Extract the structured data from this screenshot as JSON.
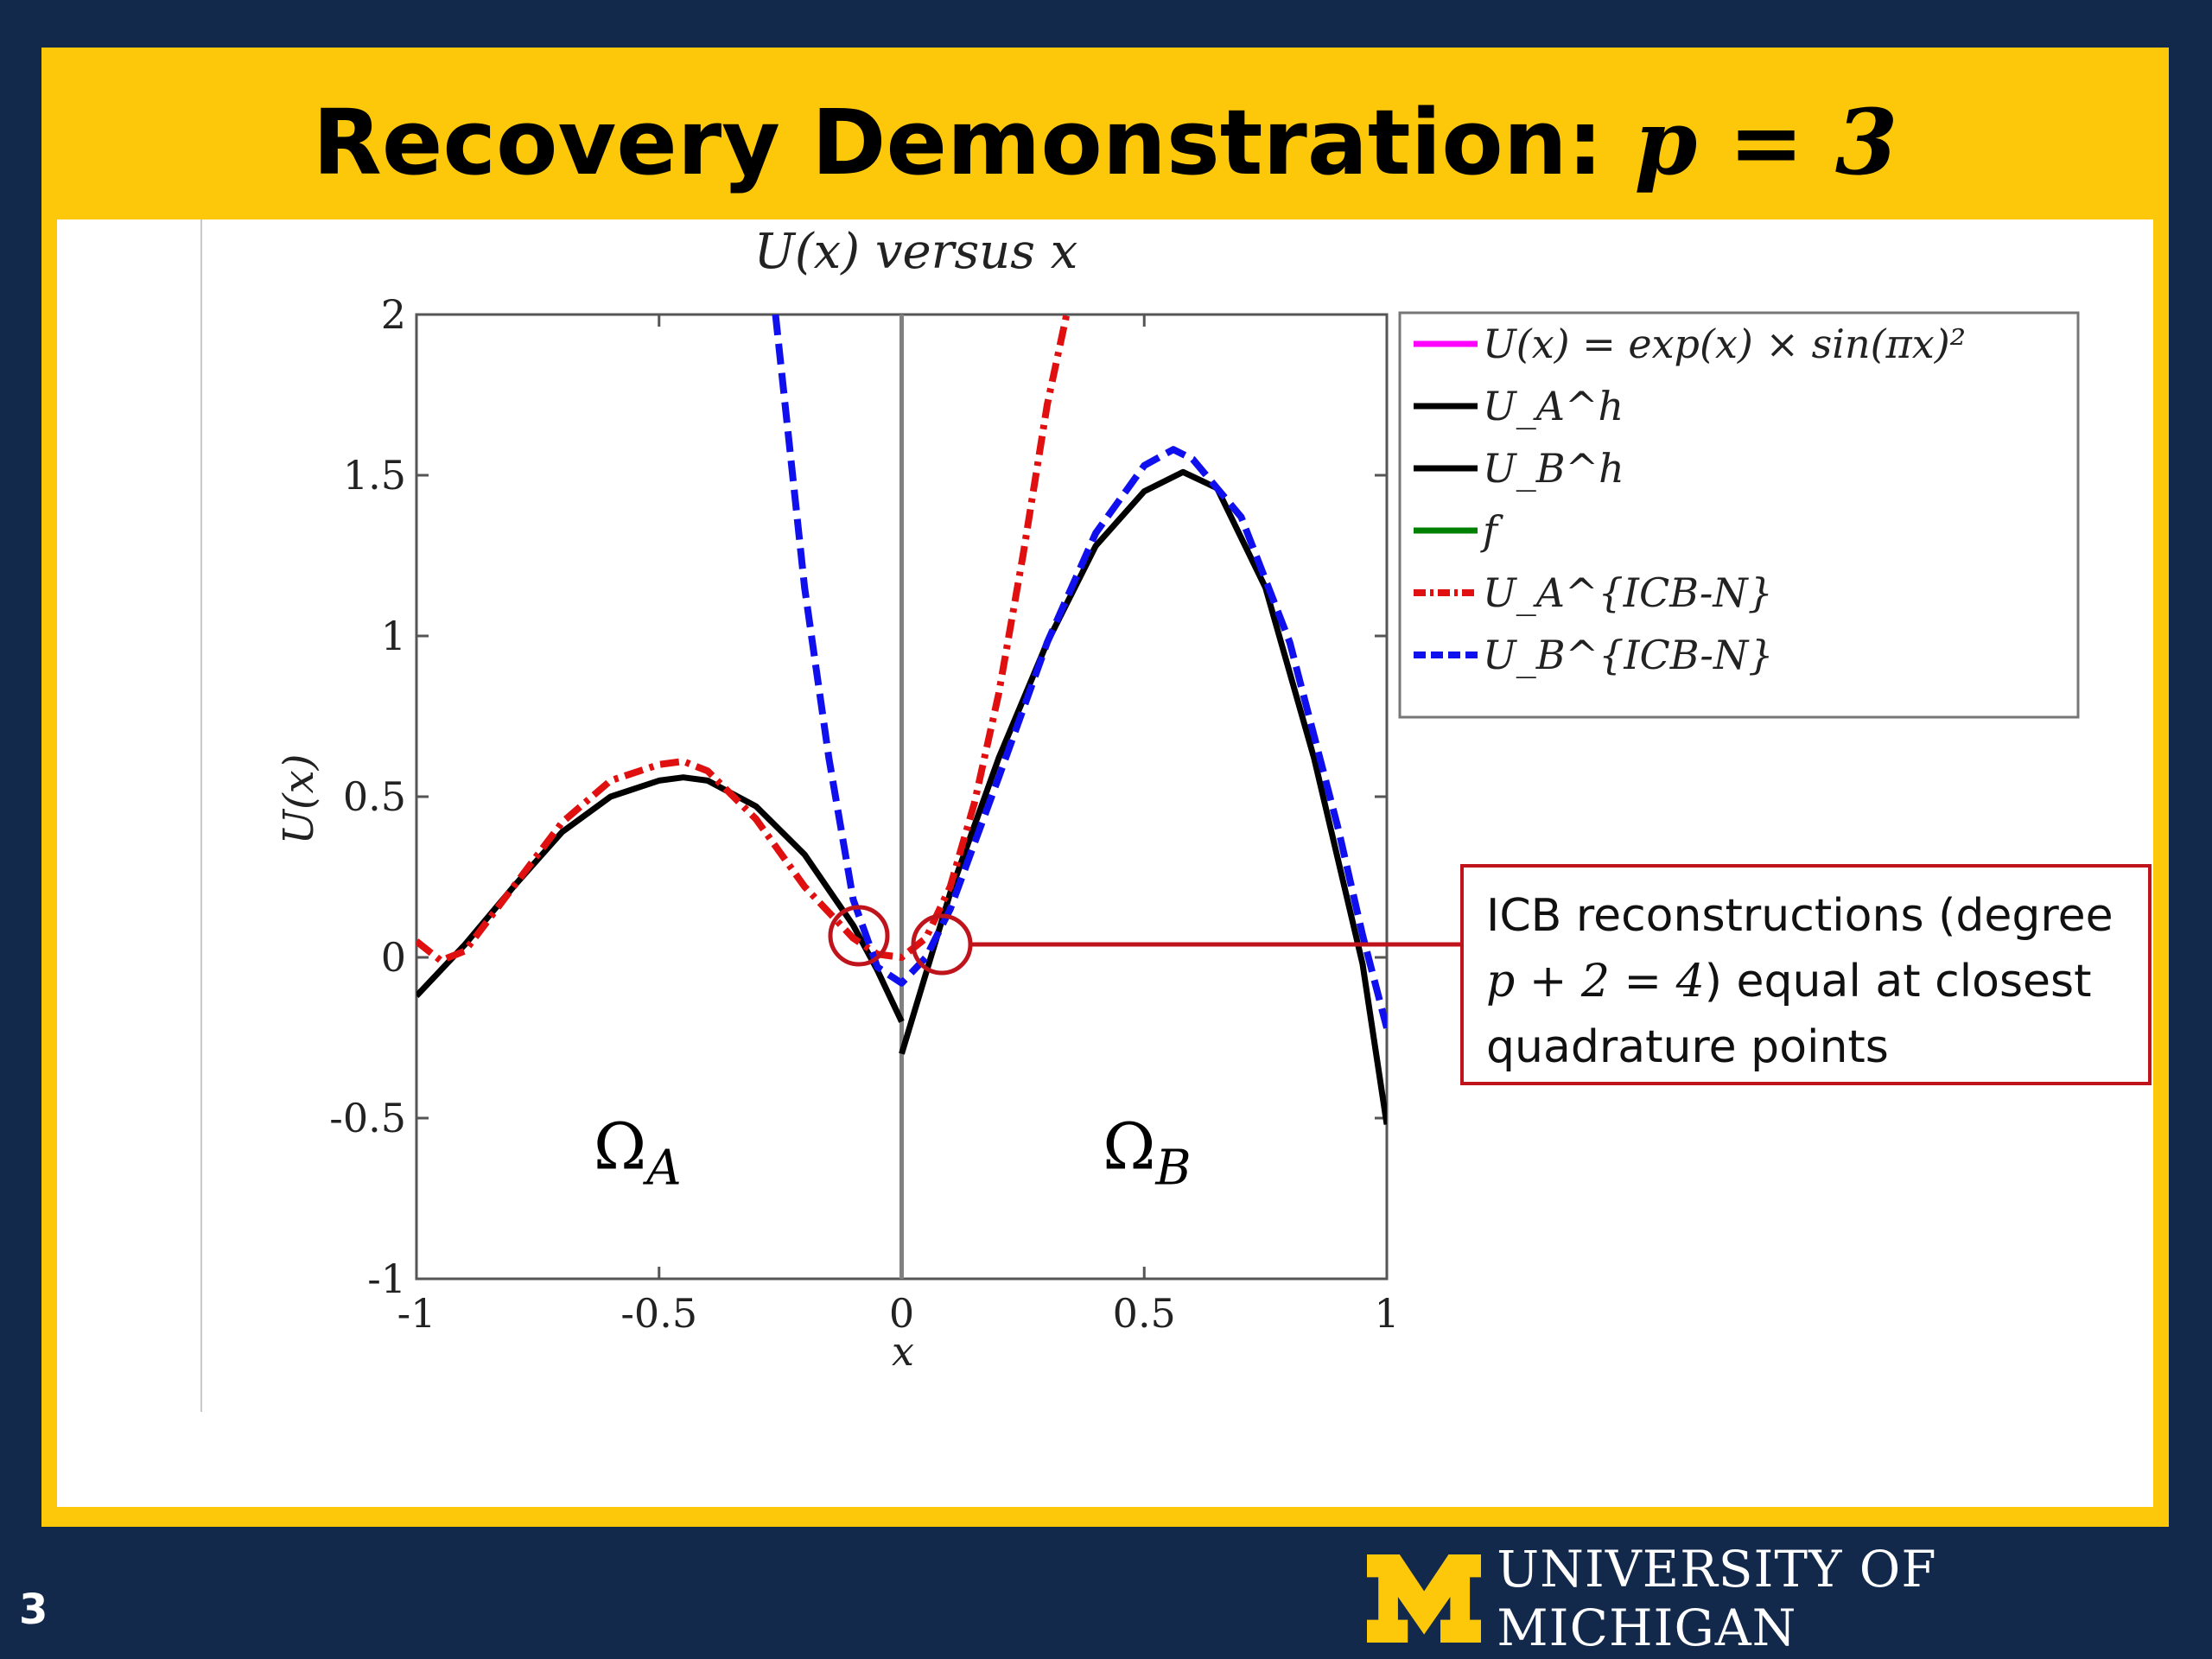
{
  "slide": {
    "title_text": "Recovery Demonstration: ",
    "title_math": "p = 3",
    "page_number": "3",
    "logo_text": "UNIVERSITY OF MICHIGAN",
    "colors": {
      "navy": "#12294b",
      "maize": "#fdc80a",
      "callout_border": "#c0141c"
    }
  },
  "callout": {
    "line1": "ICB reconstructions (degree",
    "line2_math": "p + 2 = 4",
    "line2_text": ") equal at closest",
    "line3": "quadrature points"
  },
  "chart_data": {
    "type": "line",
    "title": "U(x) versus x",
    "xlabel": "x",
    "ylabel": "U(x)",
    "xlim": [
      -1,
      1
    ],
    "ylim": [
      -1,
      2
    ],
    "xticks": [
      "-1",
      "-0.5",
      "0",
      "0.5",
      "1"
    ],
    "yticks": [
      "-1",
      "-0.5",
      "0",
      "0.5",
      "1",
      "1.5",
      "2"
    ],
    "legend_position": "top-right",
    "region_labels": [
      "Ω_A",
      "Ω_B"
    ],
    "series": [
      {
        "name": "U(x) = exp(x) × sin(πx)²",
        "color": "#ff00ff",
        "style": "solid",
        "x": [],
        "y": []
      },
      {
        "name": "U_A^h",
        "color": "#000000",
        "style": "solid",
        "x": [
          -1,
          -0.9,
          -0.8,
          -0.7,
          -0.6,
          -0.5,
          -0.45,
          -0.4,
          -0.3,
          -0.2,
          -0.1,
          -0.05,
          0
        ],
        "y": [
          -0.12,
          0.04,
          0.22,
          0.39,
          0.5,
          0.55,
          0.56,
          0.55,
          0.47,
          0.32,
          0.1,
          -0.04,
          -0.2
        ]
      },
      {
        "name": "U_B^h",
        "color": "#000000",
        "style": "solid",
        "x": [
          0,
          0.05,
          0.1,
          0.2,
          0.3,
          0.4,
          0.5,
          0.58,
          0.65,
          0.75,
          0.85,
          0.95,
          1
        ],
        "y": [
          -0.3,
          -0.05,
          0.2,
          0.62,
          0.98,
          1.28,
          1.45,
          1.51,
          1.46,
          1.15,
          0.62,
          -0.02,
          -0.52
        ]
      },
      {
        "name": "f",
        "color": "#008000",
        "style": "solid",
        "x": [],
        "y": []
      },
      {
        "name": "U_A^{ICB-N}",
        "color": "#e01010",
        "style": "dashdot",
        "x": [
          -1,
          -0.95,
          -0.9,
          -0.8,
          -0.7,
          -0.6,
          -0.5,
          -0.45,
          -0.4,
          -0.3,
          -0.2,
          -0.1,
          -0.05,
          0,
          0.05,
          0.1,
          0.15,
          0.2,
          0.25,
          0.3,
          0.34
        ],
        "y": [
          0.05,
          -0.01,
          0.02,
          0.22,
          0.42,
          0.55,
          0.6,
          0.61,
          0.58,
          0.43,
          0.22,
          0.06,
          0.01,
          0.0,
          0.06,
          0.22,
          0.48,
          0.82,
          1.25,
          1.72,
          2.0
        ]
      },
      {
        "name": "U_B^{ICB-N}",
        "color": "#1010ee",
        "style": "dashed",
        "x": [
          -0.26,
          -0.2,
          -0.15,
          -0.1,
          -0.05,
          0,
          0.05,
          0.1,
          0.2,
          0.3,
          0.4,
          0.5,
          0.56,
          0.6,
          0.7,
          0.8,
          0.9,
          0.95,
          1
        ],
        "y": [
          2.0,
          1.15,
          0.62,
          0.18,
          -0.03,
          -0.08,
          0.0,
          0.15,
          0.56,
          0.98,
          1.32,
          1.53,
          1.58,
          1.55,
          1.37,
          0.98,
          0.4,
          0.07,
          -0.22
        ]
      }
    ]
  }
}
